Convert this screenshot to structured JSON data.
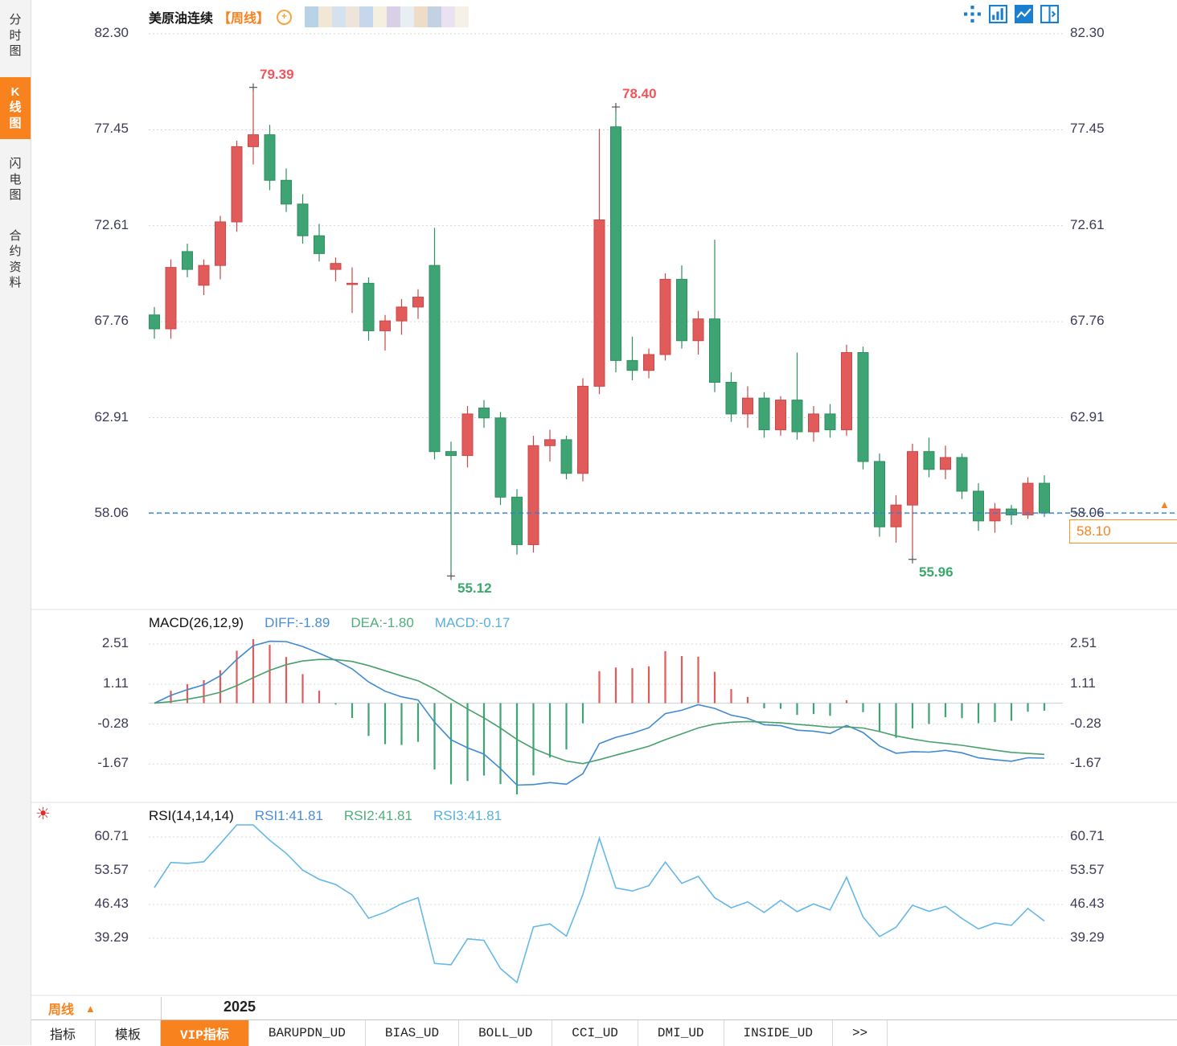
{
  "sidebar": {
    "items": [
      {
        "label": "分时图",
        "name": "sidebar-item-time-chart",
        "active": false
      },
      {
        "label": "K线图",
        "name": "sidebar-item-kline-chart",
        "active": true
      },
      {
        "label": "闪电图",
        "name": "sidebar-item-flash-chart",
        "active": false
      },
      {
        "label": "合约资料",
        "name": "sidebar-item-contract-info",
        "active": false
      }
    ]
  },
  "header": {
    "title": "美原油连续",
    "period_tag": "【周线】",
    "add_glyph": "+",
    "mosaic_colors": [
      "#b8d2e8",
      "#f0e8d4",
      "#d4e2f0",
      "#eee4da",
      "#c6d6ec",
      "#f4efdf",
      "#d9cfe6",
      "#e7eff4",
      "#efdcc6",
      "#c2d2e4",
      "#eae2f0",
      "#f5f1e4"
    ],
    "toolbar_icons": [
      {
        "name": "pan-move-icon",
        "active": false
      },
      {
        "name": "multi-pane-icon",
        "active": false
      },
      {
        "name": "kline-view-icon",
        "active": true
      },
      {
        "name": "split-view-icon",
        "active": false
      }
    ]
  },
  "left_rail": {
    "sun_glyph": "☀"
  },
  "chart_data": {
    "type": "candlestick",
    "symbol": "美原油连续",
    "period": "周线",
    "y_axis_labels": [
      "82.30",
      "77.45",
      "72.61",
      "67.76",
      "62.91",
      "58.06"
    ],
    "y_axis_values": [
      82.3,
      77.45,
      72.61,
      67.76,
      62.91,
      58.06
    ],
    "candles": [
      [
        68.1,
        68.5,
        66.9,
        67.4
      ],
      [
        67.4,
        70.9,
        66.9,
        70.5
      ],
      [
        71.3,
        71.7,
        70.0,
        70.4
      ],
      [
        69.6,
        70.9,
        69.1,
        70.6
      ],
      [
        70.6,
        73.1,
        69.9,
        72.8
      ],
      [
        72.8,
        76.9,
        72.3,
        76.6
      ],
      [
        76.6,
        79.39,
        75.7,
        77.2
      ],
      [
        77.2,
        77.7,
        74.4,
        74.9
      ],
      [
        74.9,
        75.5,
        73.3,
        73.7
      ],
      [
        73.7,
        74.2,
        71.7,
        72.1
      ],
      [
        72.1,
        72.7,
        70.8,
        71.2
      ],
      [
        70.4,
        71.0,
        69.8,
        70.7
      ],
      [
        69.7,
        70.5,
        68.2,
        69.7
      ],
      [
        69.7,
        70.0,
        66.8,
        67.3
      ],
      [
        67.3,
        68.1,
        66.3,
        67.8
      ],
      [
        67.8,
        68.9,
        67.1,
        68.5
      ],
      [
        68.5,
        69.4,
        67.9,
        69.0
      ],
      [
        70.6,
        72.5,
        60.8,
        61.2
      ],
      [
        61.2,
        61.7,
        55.12,
        61.0
      ],
      [
        61.0,
        63.5,
        60.4,
        63.1
      ],
      [
        63.4,
        63.8,
        62.4,
        62.9
      ],
      [
        62.9,
        63.2,
        58.5,
        58.9
      ],
      [
        58.9,
        59.3,
        56.0,
        56.5
      ],
      [
        56.5,
        62.0,
        56.1,
        61.5
      ],
      [
        61.5,
        62.3,
        60.7,
        61.8
      ],
      [
        61.8,
        62.0,
        59.8,
        60.1
      ],
      [
        60.1,
        64.9,
        59.7,
        64.5
      ],
      [
        64.5,
        77.5,
        64.1,
        72.9
      ],
      [
        77.6,
        78.4,
        65.2,
        65.8
      ],
      [
        65.8,
        67.0,
        64.8,
        65.3
      ],
      [
        65.3,
        66.4,
        64.9,
        66.1
      ],
      [
        66.1,
        70.2,
        65.8,
        69.9
      ],
      [
        69.9,
        70.6,
        66.4,
        66.8
      ],
      [
        66.8,
        68.3,
        66.1,
        67.9
      ],
      [
        67.9,
        71.9,
        64.2,
        64.7
      ],
      [
        64.7,
        65.2,
        62.7,
        63.1
      ],
      [
        63.1,
        64.5,
        62.4,
        63.9
      ],
      [
        63.9,
        64.2,
        61.9,
        62.3
      ],
      [
        62.3,
        64.0,
        62.0,
        63.8
      ],
      [
        63.8,
        66.2,
        61.8,
        62.2
      ],
      [
        62.2,
        63.5,
        61.7,
        63.1
      ],
      [
        63.1,
        63.6,
        61.9,
        62.3
      ],
      [
        62.3,
        66.6,
        62.0,
        66.2
      ],
      [
        66.2,
        66.5,
        60.3,
        60.7
      ],
      [
        60.7,
        61.1,
        56.9,
        57.4
      ],
      [
        57.4,
        59.0,
        56.6,
        58.5
      ],
      [
        58.5,
        61.6,
        55.96,
        61.2
      ],
      [
        61.2,
        61.9,
        59.9,
        60.3
      ],
      [
        60.3,
        61.5,
        59.8,
        60.9
      ],
      [
        60.9,
        61.1,
        58.8,
        59.2
      ],
      [
        59.2,
        59.6,
        57.2,
        57.7
      ],
      [
        57.7,
        58.6,
        57.1,
        58.3
      ],
      [
        58.3,
        58.5,
        57.5,
        58.0
      ],
      [
        58.0,
        59.9,
        57.8,
        59.6
      ],
      [
        59.6,
        60.0,
        57.9,
        58.1
      ]
    ],
    "annotations": [
      {
        "text": "79.39",
        "index": 6,
        "side": "high",
        "color": "#f25459"
      },
      {
        "text": "78.40",
        "index": 28,
        "side": "high",
        "color": "#f25459"
      },
      {
        "text": "55.12",
        "index": 18,
        "side": "low",
        "color": "#3aa76d"
      },
      {
        "text": "55.96",
        "index": 46,
        "side": "low",
        "color": "#3aa76d"
      }
    ],
    "current_price": {
      "value": "58.10",
      "level": 58.1,
      "arrow": "▲"
    },
    "macd": {
      "title": "MACD(26,12,9)",
      "diff_label": "DIFF:-1.89",
      "dea_label": "DEA:-1.80",
      "macd_label": "MACD:-0.17",
      "axis_labels": [
        "2.51",
        "1.11",
        "-0.28",
        "-1.67"
      ],
      "axis_values": [
        2.51,
        1.11,
        -0.28,
        -1.67
      ]
    },
    "rsi": {
      "title": "RSI(14,14,14)",
      "rsi1_label": "RSI1:41.81",
      "rsi2_label": "RSI2:41.81",
      "rsi3_label": "RSI3:41.81",
      "axis_labels": [
        "60.71",
        "53.57",
        "46.43",
        "39.29"
      ],
      "axis_values": [
        60.71,
        53.57,
        46.43,
        39.29
      ]
    },
    "x_axis": {
      "year_label": "2025"
    },
    "colors": {
      "up": "#e25b5b",
      "up_border": "#c94848",
      "down": "#3fa474",
      "down_border": "#2e8f5f",
      "dashed_line": "#2f7ed8",
      "diff_line": "#3f8ad2",
      "dea_line": "#4aa06a",
      "rsi_line": "#63b8e8",
      "accent_orange": "#f8821e",
      "annotation_high": "#f25459",
      "annotation_low": "#3aa76d"
    }
  },
  "footer": {
    "period_label": "周线",
    "period_arrow": "▲"
  },
  "tabs": [
    {
      "label": "指标",
      "name": "tab-indicator",
      "active": false
    },
    {
      "label": "模板",
      "name": "tab-template",
      "active": false
    },
    {
      "label": "VIP指标",
      "name": "tab-vip-indicator",
      "active": true
    },
    {
      "label": "BARUPDN_UD",
      "name": "tab-barupdn-ud",
      "active": false
    },
    {
      "label": "BIAS_UD",
      "name": "tab-bias-ud",
      "active": false
    },
    {
      "label": "BOLL_UD",
      "name": "tab-boll-ud",
      "active": false
    },
    {
      "label": "CCI_UD",
      "name": "tab-cci-ud",
      "active": false
    },
    {
      "label": "DMI_UD",
      "name": "tab-dmi-ud",
      "active": false
    },
    {
      "label": "INSIDE_UD",
      "name": "tab-inside-ud",
      "active": false
    },
    {
      "label": ">>",
      "name": "tab-more",
      "active": false
    }
  ]
}
